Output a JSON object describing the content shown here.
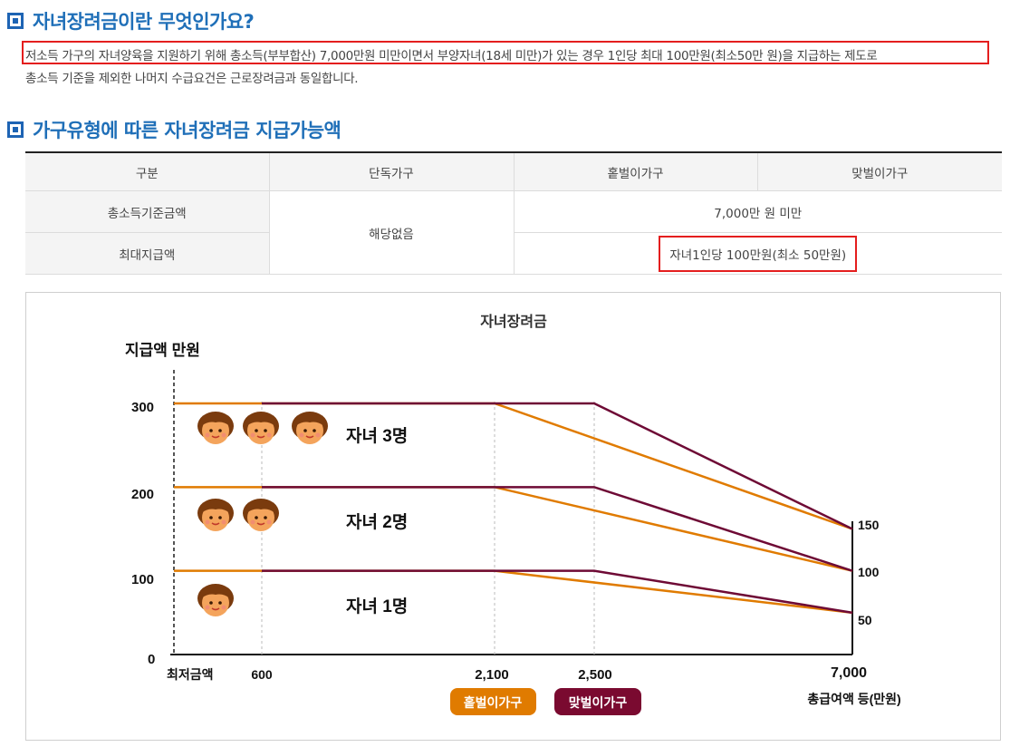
{
  "section1": {
    "title": "자녀장려금이란 무엇인가요?"
  },
  "description": {
    "line1": "저소득 가구의 자녀양육을 지원하기 위해 총소득(부부합산) 7,000만원 미만이면서 부양자녀(18세 미만)가 있는 경우 1인당 최대 100만원(최소50만 원)을 지급하는 제도로",
    "line2": "총소득 기준을 제외한 나머지 수급요건은 근로장려금과 동일합니다."
  },
  "section2": {
    "title": "가구유형에 따른 자녀장려금 지급가능액"
  },
  "table": {
    "headers": [
      "구분",
      "단독가구",
      "홑벌이가구",
      "맞벌이가구"
    ],
    "row1_label": "총소득기준금액",
    "row2_label": "최대지급액",
    "single_value": "해당없음",
    "income_limit": "7,000만 원 미만",
    "max_amount": "자녀1인당 100만원(최소 50만원)"
  },
  "colors": {
    "title_blue": "#1f6fb8",
    "highlight_red": "#e41e1e",
    "single_income": "#e07b00",
    "dual_income": "#6e0a35"
  },
  "chart_data": {
    "type": "line",
    "title": "자녀장려금",
    "ylabel": "지급액 만원",
    "xlabel": "총급여액 등(만원)",
    "x_ticks": [
      "최저금액",
      "600",
      "2,100",
      "2,500",
      "7,000"
    ],
    "y_ticks": [
      "0",
      "100",
      "200",
      "300"
    ],
    "right_ticks": [
      "150",
      "100",
      "50"
    ],
    "ylim": [
      0,
      300
    ],
    "child_labels": [
      "자녀 3명",
      "자녀 2명",
      "자녀 1명"
    ],
    "series": [
      {
        "name": "홑벌이가구",
        "color": "#e07b00",
        "lines": [
          [
            [
              0,
              300
            ],
            [
              2100,
              300
            ],
            [
              7000,
              150
            ]
          ],
          [
            [
              0,
              200
            ],
            [
              2100,
              200
            ],
            [
              7000,
              100
            ]
          ],
          [
            [
              0,
              100
            ],
            [
              2100,
              100
            ],
            [
              7000,
              50
            ]
          ]
        ]
      },
      {
        "name": "맞벌이가구",
        "color": "#6e0a35",
        "lines": [
          [
            [
              600,
              300
            ],
            [
              2500,
              300
            ],
            [
              7000,
              150
            ]
          ],
          [
            [
              600,
              200
            ],
            [
              2500,
              200
            ],
            [
              7000,
              100
            ]
          ],
          [
            [
              600,
              100
            ],
            [
              2500,
              100
            ],
            [
              7000,
              50
            ]
          ]
        ]
      }
    ],
    "legend": [
      "홑벌이가구",
      "맞벌이가구"
    ]
  }
}
